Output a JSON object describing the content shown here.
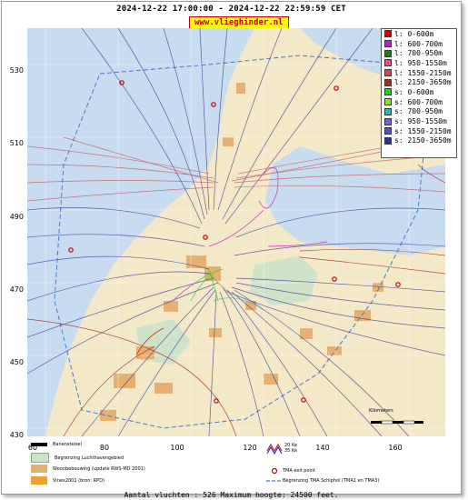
{
  "header": {
    "title": "2024-12-22 17:00:00 - 2024-12-22 22:59:59 CET",
    "site": "www.vlieghinder.nl"
  },
  "axes": {
    "y_labels": [
      "530",
      "510",
      "490",
      "470",
      "450",
      "430"
    ],
    "x_labels": [
      "60",
      "80",
      "100",
      "120",
      "140",
      "160"
    ]
  },
  "legend": {
    "items": [
      {
        "label": "l: 0-600m",
        "color": "#e00000"
      },
      {
        "label": "l: 600-700m",
        "color": "#c020c0"
      },
      {
        "label": "l: 700-950m",
        "color": "#208020"
      },
      {
        "label": "l: 950-1550m",
        "color": "#e05090"
      },
      {
        "label": "l: 1550-2150m",
        "color": "#c05050"
      },
      {
        "label": "l: 2150-3650m",
        "color": "#a03020"
      },
      {
        "label": "s: 0-600m",
        "color": "#20d020"
      },
      {
        "label": "s: 600-700m",
        "color": "#90e020"
      },
      {
        "label": "s: 700-950m",
        "color": "#20c0a0"
      },
      {
        "label": "s: 950-1550m",
        "color": "#7060e0"
      },
      {
        "label": "s: 1550-2150m",
        "color": "#5050c0"
      },
      {
        "label": "s: 2150-3650m",
        "color": "#303090"
      }
    ]
  },
  "bottom_legend": {
    "runway": "Banenstelsel",
    "airport": "Begrenzing Luchthavengebied",
    "housing": "Woonbebouwing (update RWS-MD 2001)",
    "vinex": "Vinex2001 (bron: RPD)",
    "noise_1": "20 Ke",
    "noise_2": "35 Ke",
    "tma_exit": "TMA exit point",
    "tma_border": "Begrenzing TMA Schiphol  (TMA1 en TMA3)"
  },
  "scale": {
    "label": "Kilometers"
  },
  "footer": {
    "text": "Aantal vluchten : 526 Maximum hoogte: 24500 feet."
  },
  "colors": {
    "sea": "#c8dcf0",
    "land": "#f3e8c8",
    "urban": "#e8b070",
    "green": "#cfe3c8",
    "tma": "#4a78c8"
  }
}
